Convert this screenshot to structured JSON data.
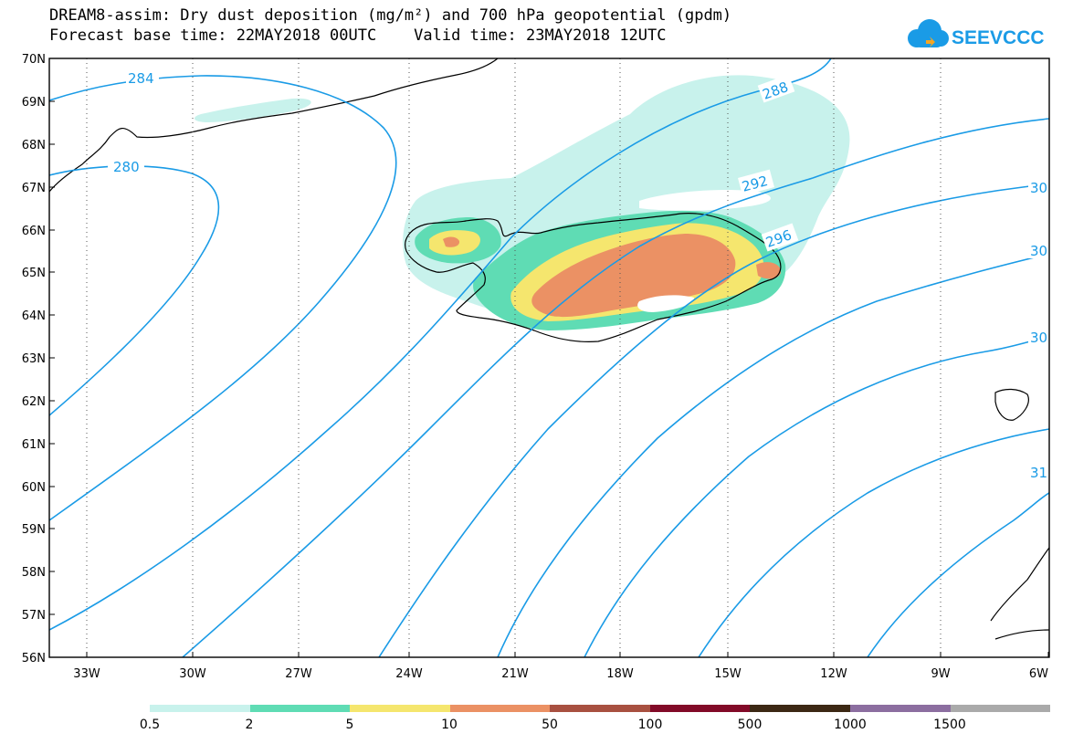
{
  "header": {
    "title_line1": "DREAM8-assim: Dry dust deposition (mg/m²) and 700 hPa geopotential (gpdm)",
    "title_line2": "Forecast base time: 22MAY2018 00UTC    Valid time: 23MAY2018 12UTC"
  },
  "logo": {
    "text": "SEEVCCC",
    "color": "#1a9be6"
  },
  "map": {
    "lat_range": [
      56,
      70
    ],
    "lon_range": [
      -34.5,
      -6
    ],
    "lat_labels": [
      "70N",
      "69N",
      "68N",
      "67N",
      "66N",
      "65N",
      "64N",
      "63N",
      "62N",
      "61N",
      "60N",
      "59N",
      "58N",
      "57N",
      "56N"
    ],
    "lon_labels": [
      "33W",
      "30W",
      "27W",
      "24W",
      "21W",
      "18W",
      "15W",
      "12W",
      "9W",
      "6W"
    ],
    "contour_color": "#1a9be6",
    "contour_labels": [
      "284",
      "280",
      "288",
      "292",
      "296",
      "30",
      "30",
      "30",
      "31"
    ]
  },
  "legend": {
    "colors": [
      "#c8f2ec",
      "#5fdcb4",
      "#f5e66e",
      "#eb9164",
      "#a85040",
      "#820a28",
      "#3c2814",
      "#8c6ea0",
      "#aaaaaa"
    ],
    "labels": [
      "0.5",
      "2",
      "5",
      "10",
      "50",
      "100",
      "500",
      "1000",
      "1500"
    ]
  }
}
